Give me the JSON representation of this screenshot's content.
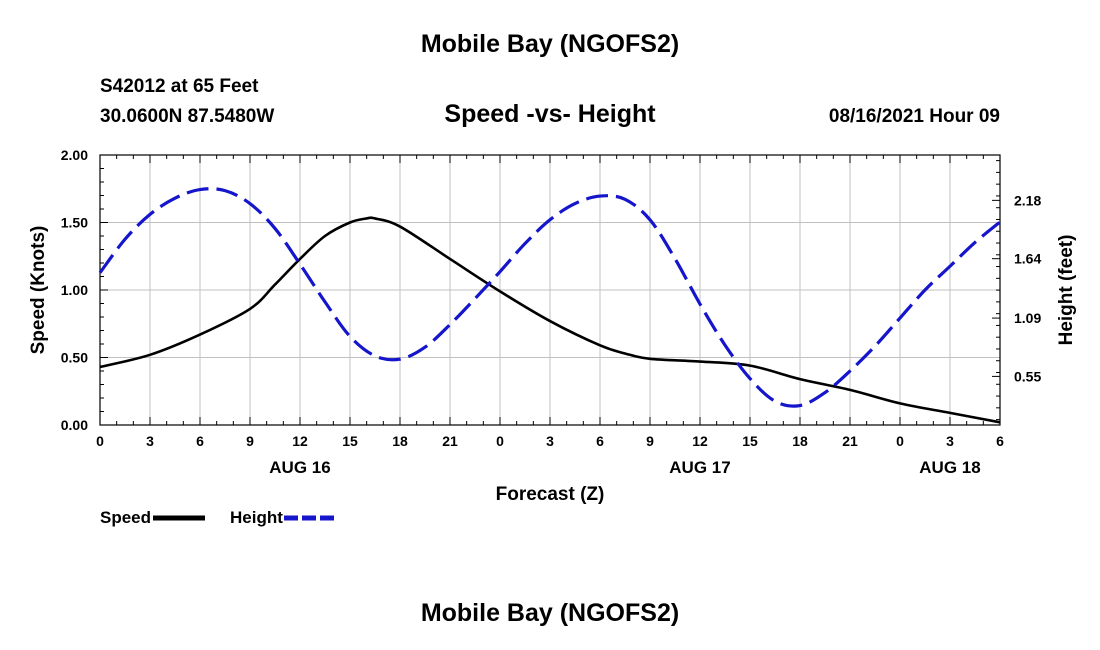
{
  "header": {
    "title_top": "Mobile Bay (NGOFS2)",
    "title_bottom": "Mobile Bay (NGOFS2)",
    "station": "S42012 at 65 Feet",
    "coords": "30.0600N  87.5480W",
    "datetime": "08/16/2021 Hour 09"
  },
  "legend": {
    "speed_label": "Speed",
    "height_label": "Height"
  },
  "colors": {
    "speed": "#000000",
    "height": "#1515cc",
    "grid": "#c0c0c0"
  },
  "chart_data": {
    "type": "line",
    "title": "Speed -vs- Height",
    "xlabel": "Forecast (Z)",
    "ylabel": "Speed (Knots)",
    "y2label": "Height (feet)",
    "x_range": [
      0,
      54
    ],
    "ylim": [
      0,
      2.0
    ],
    "y2lim": [
      0.1,
      2.6
    ],
    "x_ticks": [
      0,
      3,
      6,
      9,
      12,
      15,
      18,
      21,
      24,
      27,
      30,
      33,
      36,
      39,
      42,
      45,
      48,
      51,
      54
    ],
    "x_tick_labels": [
      "0",
      "3",
      "6",
      "9",
      "12",
      "15",
      "18",
      "21",
      "0",
      "3",
      "6",
      "9",
      "12",
      "15",
      "18",
      "21",
      "0",
      "3",
      "6"
    ],
    "date_labels": [
      {
        "x": 12,
        "label": "AUG 16"
      },
      {
        "x": 36,
        "label": "AUG 17"
      },
      {
        "x": 51,
        "label": "AUG 18"
      }
    ],
    "y_ticks": [
      0,
      0.5,
      1.0,
      1.5,
      2.0
    ],
    "y_tick_labels": [
      "0.00",
      "0.50",
      "1.00",
      "1.50",
      "2.00"
    ],
    "y2_ticks": [
      0.55,
      1.09,
      1.64,
      2.18
    ],
    "y2_tick_labels": [
      "0.55",
      "1.09",
      "1.64",
      "2.18"
    ],
    "grid": true,
    "series": [
      {
        "name": "Speed",
        "axis": "left",
        "style": "solid",
        "x": [
          0,
          3,
          6,
          9,
          10.5,
          12,
          13.5,
          15,
          16,
          16.5,
          18,
          21,
          24,
          27,
          30,
          31.5,
          33,
          36,
          39,
          42,
          45,
          48,
          51,
          54
        ],
        "values": [
          0.43,
          0.52,
          0.67,
          0.86,
          1.04,
          1.23,
          1.4,
          1.5,
          1.53,
          1.53,
          1.47,
          1.23,
          0.99,
          0.77,
          0.59,
          0.53,
          0.49,
          0.47,
          0.44,
          0.34,
          0.26,
          0.16,
          0.09,
          0.02
        ]
      },
      {
        "name": "Height",
        "axis": "right",
        "style": "dashed",
        "x": [
          0,
          1.5,
          3,
          4.5,
          6,
          7.5,
          9,
          10.5,
          12,
          13.5,
          15,
          16.5,
          18,
          19.5,
          21,
          22.5,
          24,
          25.5,
          27,
          28.5,
          30,
          31.5,
          33,
          34.5,
          36,
          37.5,
          39,
          40.5,
          42,
          43.5,
          45,
          46.5,
          48,
          49.5,
          51,
          52.5,
          54
        ],
        "values": [
          1.51,
          1.82,
          2.05,
          2.2,
          2.28,
          2.27,
          2.15,
          1.92,
          1.59,
          1.24,
          0.92,
          0.74,
          0.71,
          0.82,
          1.03,
          1.27,
          1.52,
          1.78,
          2.0,
          2.15,
          2.22,
          2.19,
          2.0,
          1.64,
          1.22,
          0.84,
          0.53,
          0.32,
          0.28,
          0.4,
          0.6,
          0.83,
          1.09,
          1.35,
          1.57,
          1.79,
          1.98
        ]
      }
    ]
  }
}
